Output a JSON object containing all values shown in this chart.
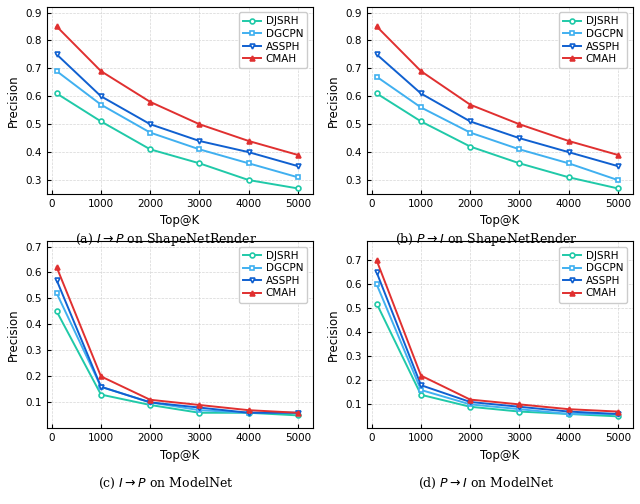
{
  "x_vals": [
    100,
    1000,
    2000,
    3000,
    4000,
    5000
  ],
  "subplot_a": {
    "ylim": [
      0.25,
      0.92
    ],
    "yticks": [
      0.3,
      0.4,
      0.5,
      0.6,
      0.7,
      0.8,
      0.9
    ],
    "DJSRH": [
      0.61,
      0.51,
      0.41,
      0.36,
      0.3,
      0.27
    ],
    "DGCPN": [
      0.69,
      0.57,
      0.47,
      0.41,
      0.36,
      0.31
    ],
    "ASSPH": [
      0.75,
      0.6,
      0.5,
      0.44,
      0.4,
      0.35
    ],
    "CMAH": [
      0.85,
      0.69,
      0.58,
      0.5,
      0.44,
      0.39
    ]
  },
  "subplot_b": {
    "ylim": [
      0.25,
      0.92
    ],
    "yticks": [
      0.3,
      0.4,
      0.5,
      0.6,
      0.7,
      0.8,
      0.9
    ],
    "DJSRH": [
      0.61,
      0.51,
      0.42,
      0.36,
      0.31,
      0.27
    ],
    "DGCPN": [
      0.67,
      0.56,
      0.47,
      0.41,
      0.36,
      0.3
    ],
    "ASSPH": [
      0.75,
      0.61,
      0.51,
      0.45,
      0.4,
      0.35
    ],
    "CMAH": [
      0.85,
      0.69,
      0.57,
      0.5,
      0.44,
      0.39
    ]
  },
  "subplot_c": {
    "ylim": [
      0.0,
      0.72
    ],
    "yticks": [
      0.1,
      0.2,
      0.3,
      0.4,
      0.5,
      0.6,
      0.7
    ],
    "DJSRH": [
      0.45,
      0.13,
      0.09,
      0.06,
      0.06,
      0.05
    ],
    "DGCPN": [
      0.52,
      0.16,
      0.1,
      0.07,
      0.06,
      0.06
    ],
    "ASSPH": [
      0.57,
      0.16,
      0.1,
      0.08,
      0.06,
      0.06
    ],
    "CMAH": [
      0.62,
      0.2,
      0.11,
      0.09,
      0.07,
      0.06
    ]
  },
  "subplot_d": {
    "ylim": [
      0.0,
      0.78
    ],
    "yticks": [
      0.1,
      0.2,
      0.3,
      0.4,
      0.5,
      0.6,
      0.7
    ],
    "DJSRH": [
      0.52,
      0.14,
      0.09,
      0.07,
      0.06,
      0.05
    ],
    "DGCPN": [
      0.6,
      0.16,
      0.1,
      0.08,
      0.06,
      0.06
    ],
    "ASSPH": [
      0.65,
      0.18,
      0.11,
      0.09,
      0.07,
      0.06
    ],
    "CMAH": [
      0.7,
      0.22,
      0.12,
      0.1,
      0.08,
      0.07
    ]
  },
  "colors": {
    "DJSRH": "#20c9a8",
    "DGCPN": "#40b0f0",
    "ASSPH": "#1060d0",
    "CMAH": "#e03030"
  },
  "markers": {
    "DJSRH": "o",
    "DGCPN": "s",
    "ASSPH": "v",
    "CMAH": "^"
  },
  "methods": [
    "DJSRH",
    "DGCPN",
    "ASSPH",
    "CMAH"
  ],
  "captions": [
    "(a) $I \\rightarrow P$ on ShapeNetRender",
    "(b) $P \\rightarrow I$ on ShapeNetRender",
    "(c) $I \\rightarrow P$ on ModelNet",
    "(d) $P \\rightarrow I$ on ModelNet"
  ]
}
